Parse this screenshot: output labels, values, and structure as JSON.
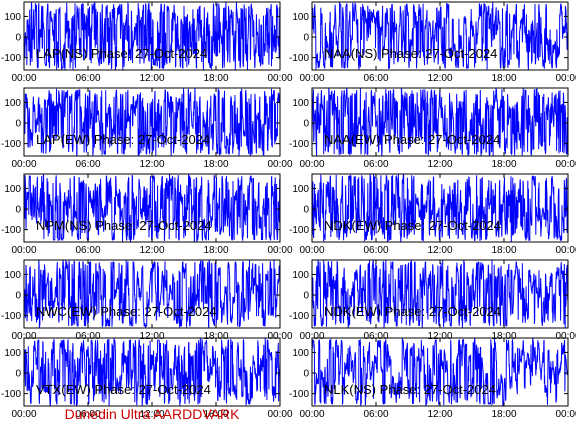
{
  "chart_data": [
    {
      "type": "line",
      "title": "LAP(NS) Phase: 27-Oct-2024",
      "ylim": [
        -160,
        170
      ],
      "yticks": [
        -100,
        0,
        100
      ],
      "xticks": [
        "00:00",
        "06:00",
        "12:00",
        "18:00",
        "00:00"
      ],
      "density": 0.55,
      "series": [
        {
          "color": "#0000ff"
        }
      ]
    },
    {
      "type": "line",
      "title": "NAA(NS) Phase: 27-Oct-2024",
      "ylim": [
        -160,
        170
      ],
      "yticks": [
        -100,
        0,
        100
      ],
      "xticks": [
        "00:00",
        "06:00",
        "12:00",
        "18:00",
        "00:00"
      ],
      "density": 0.35,
      "series": [
        {
          "color": "#0000ff"
        }
      ]
    },
    {
      "type": "line",
      "title": "LAP(EW) Phase: 27-Oct-2024",
      "ylim": [
        -160,
        170
      ],
      "yticks": [
        -100,
        0,
        100
      ],
      "xticks": [
        "00:00",
        "06:00",
        "12:00",
        "18:00",
        "00:00"
      ],
      "density": 0.5,
      "series": [
        {
          "color": "#0000ff"
        }
      ]
    },
    {
      "type": "line",
      "title": "NAA(EW) Phase: 27-Oct-2024",
      "ylim": [
        -160,
        170
      ],
      "yticks": [
        -100,
        0,
        100
      ],
      "xticks": [
        "00:00",
        "06:00",
        "12:00",
        "18:00",
        "00:00"
      ],
      "density": 0.6,
      "series": [
        {
          "color": "#0000ff"
        }
      ]
    },
    {
      "type": "line",
      "title": "NPM(NS) Phase: 27-Oct-2024",
      "ylim": [
        -160,
        170
      ],
      "yticks": [
        -100,
        0,
        100
      ],
      "xticks": [
        "00:00",
        "06:00",
        "12:00",
        "18:00",
        "00:00"
      ],
      "density": 0.45,
      "series": [
        {
          "color": "#0000ff"
        }
      ]
    },
    {
      "type": "line",
      "title": "NDK(EW) Phase: 27-Oct-2024",
      "ylim": [
        -160,
        170
      ],
      "yticks": [
        -100,
        0,
        100
      ],
      "xticks": [
        "00:00",
        "06:00",
        "12:00",
        "18:00",
        "00:00"
      ],
      "density": 0.5,
      "series": [
        {
          "color": "#0000ff"
        }
      ]
    },
    {
      "type": "line",
      "title": "NWC(EW) Phase: 27-Oct-2024",
      "ylim": [
        -160,
        170
      ],
      "yticks": [
        -100,
        0,
        100
      ],
      "xticks": [
        "00:00",
        "06:00",
        "12:00",
        "18:00",
        "00:00"
      ],
      "density": 0.4,
      "series": [
        {
          "color": "#0000ff"
        }
      ]
    },
    {
      "type": "line",
      "title": "NDK(EW) Phase: 27-Oct-2024",
      "ylim": [
        -160,
        170
      ],
      "yticks": [
        -100,
        0,
        100
      ],
      "xticks": [
        "00:00",
        "06:00",
        "12:00",
        "18:00",
        "00:00"
      ],
      "density": 0.5,
      "series": [
        {
          "color": "#0000ff"
        }
      ]
    },
    {
      "type": "line",
      "title": "VTX(EW) Phase: 27-Oct-2024",
      "ylim": [
        -160,
        170
      ],
      "yticks": [
        -100,
        0,
        100
      ],
      "xticks": [
        "00:00",
        "06:00",
        "12:00",
        "18:00",
        "00:00"
      ],
      "density": 0.45,
      "series": [
        {
          "color": "#0000ff"
        }
      ]
    },
    {
      "type": "line",
      "title": "NLK(NS) Phase: 27-Oct-2024",
      "ylim": [
        -160,
        170
      ],
      "yticks": [
        -100,
        0,
        100
      ],
      "xticks": [
        "00:00",
        "06:00",
        "12:00",
        "18:00",
        "00:00"
      ],
      "density": 0.3,
      "series": [
        {
          "color": "#0000ff"
        }
      ]
    }
  ],
  "footer": {
    "text": "Dunedin Ultra AARDDVARK",
    "color": "#cc0000"
  }
}
